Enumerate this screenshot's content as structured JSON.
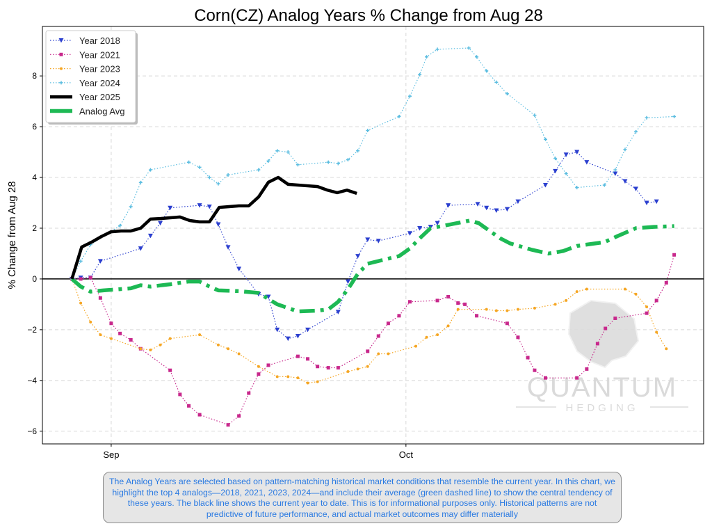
{
  "chart_data": {
    "type": "line",
    "title": "Corn(CZ) Analog Years % Change from Aug 28",
    "xlabel": "",
    "ylabel": "% Change from Aug 28",
    "x_unit": "days since Aug 28",
    "xlim": [
      -3,
      64.3
    ],
    "ylim": [
      -6.5,
      9.95
    ],
    "x_ticks": [
      {
        "value": 4,
        "label": "Sep"
      },
      {
        "value": 34,
        "label": "Oct"
      }
    ],
    "y_ticks": [
      -6,
      -4,
      -2,
      0,
      2,
      4,
      6,
      8
    ],
    "grid": true,
    "legend_position": "top-left",
    "series": [
      {
        "name": "Year 2018",
        "color": "#2b3fcf",
        "style": "dotted",
        "marker": "triangle-down",
        "x": [
          0,
          0.9,
          1.9,
          2.9,
          7,
          8,
          9,
          10,
          13,
          14,
          14.9,
          15.9,
          17,
          19,
          20,
          20.9,
          22,
          23,
          24,
          27.1,
          28.1,
          29.1,
          30.1,
          31.2,
          34.4,
          35.4,
          36.5,
          37.2,
          38.3,
          41.3,
          42.2,
          43.2,
          44.3,
          45.4,
          48.2,
          49.2,
          50.3,
          51.4,
          52.4,
          55.3,
          56.3,
          57.4,
          58.5,
          59.5
        ],
        "y": [
          0,
          0.05,
          0.05,
          0.7,
          1.2,
          1.7,
          2.2,
          2.8,
          2.9,
          2.85,
          2.15,
          1.25,
          0.4,
          -0.6,
          -0.7,
          -2.0,
          -2.35,
          -2.25,
          -2.0,
          -1.3,
          -0.1,
          0.9,
          1.55,
          1.5,
          1.8,
          2.0,
          2.05,
          2.2,
          2.9,
          2.95,
          2.8,
          2.7,
          2.75,
          3.05,
          3.7,
          4.25,
          4.9,
          5.0,
          4.6,
          4.15,
          3.85,
          3.55,
          3.0,
          3.05
        ]
      },
      {
        "name": "Year 2021",
        "color": "#c8288c",
        "style": "dotted",
        "marker": "square",
        "x": [
          0,
          0.9,
          1.9,
          2.9,
          4,
          4.9,
          6,
          7,
          10,
          11,
          11.9,
          13,
          15.9,
          17,
          18,
          19,
          20,
          23,
          24,
          25,
          26.1,
          27.1,
          30.1,
          31.2,
          32.2,
          33.3,
          34.4,
          37.2,
          38.3,
          39.3,
          40,
          41.2,
          44.3,
          45.4,
          46.4,
          47.1,
          48.2,
          51.4,
          52.4,
          53.5,
          54.3,
          55.3,
          58.5,
          59.5,
          60.5,
          61.3
        ],
        "y": [
          0,
          0,
          0.05,
          -0.75,
          -1.75,
          -2.15,
          -2.4,
          -2.75,
          -3.6,
          -4.55,
          -5.0,
          -5.35,
          -5.75,
          -5.4,
          -4.5,
          -3.75,
          -3.4,
          -3.05,
          -3.15,
          -3.45,
          -3.5,
          -3.5,
          -2.85,
          -2.25,
          -1.75,
          -1.45,
          -0.9,
          -0.85,
          -0.7,
          -0.95,
          -1.0,
          -1.45,
          -1.75,
          -2.3,
          -3.1,
          -3.6,
          -3.9,
          -3.9,
          -3.55,
          -2.55,
          -1.95,
          -1.55,
          -1.35,
          -0.85,
          -0.15,
          0.95
        ]
      },
      {
        "name": "Year 2023",
        "color": "#f5a623",
        "style": "dotted",
        "marker": "star",
        "x": [
          0,
          0.9,
          1.9,
          2.9,
          4,
          7,
          8,
          9,
          10,
          13,
          14.9,
          15.9,
          17,
          19,
          20.9,
          22,
          23,
          24,
          25,
          28.1,
          29.1,
          30.1,
          31.2,
          32.2,
          35,
          36.1,
          37.2,
          38.3,
          39.3,
          42.2,
          43.2,
          44.3,
          45.4,
          47.1,
          49.2,
          50.3,
          51.4,
          52.4,
          56.3,
          57.4,
          58.5,
          59.5,
          60.5
        ],
        "y": [
          0,
          -0.95,
          -1.7,
          -2.2,
          -2.35,
          -2.75,
          -2.8,
          -2.6,
          -2.35,
          -2.2,
          -2.6,
          -2.75,
          -2.95,
          -3.45,
          -3.85,
          -3.85,
          -3.9,
          -4.1,
          -4.05,
          -3.65,
          -3.55,
          -3.45,
          -2.95,
          -2.95,
          -2.65,
          -2.3,
          -2.2,
          -1.85,
          -1.2,
          -1.2,
          -1.25,
          -1.25,
          -1.2,
          -1.15,
          -1.0,
          -0.85,
          -0.5,
          -0.4,
          -0.4,
          -0.6,
          -1.1,
          -2.1,
          -2.75
        ]
      },
      {
        "name": "Year 2024",
        "color": "#5bbde0",
        "style": "dotted",
        "marker": "plus",
        "x": [
          0,
          0.9,
          1.9,
          4.9,
          6,
          7,
          8,
          11.9,
          13,
          14,
          14.9,
          15.9,
          19,
          20,
          20.9,
          22,
          23,
          26.1,
          27.1,
          28.1,
          29.1,
          30.1,
          33.3,
          34.4,
          35.4,
          36.1,
          37.2,
          40.4,
          41.2,
          42.2,
          43.2,
          44.3,
          47.1,
          48.2,
          49.2,
          50.3,
          51.4,
          54.2,
          55.3,
          56.3,
          57.4,
          58.5,
          61.3
        ],
        "y": [
          0,
          0.7,
          1.35,
          2.1,
          2.85,
          3.8,
          4.3,
          4.6,
          4.4,
          4.0,
          3.75,
          4.1,
          4.3,
          4.65,
          5.05,
          5.0,
          4.5,
          4.6,
          4.55,
          4.7,
          5.05,
          5.85,
          6.4,
          7.2,
          8.05,
          8.75,
          9.05,
          9.1,
          8.75,
          8.2,
          7.75,
          7.3,
          6.45,
          5.5,
          4.75,
          4.15,
          3.6,
          3.7,
          4.3,
          5.1,
          5.8,
          6.35,
          6.4
        ]
      },
      {
        "name": "Year 2025",
        "color": "#000000",
        "style": "solid",
        "marker": "none",
        "x": [
          0,
          1,
          2,
          3,
          4,
          5,
          6,
          7,
          8,
          9,
          10,
          11,
          12,
          13,
          14,
          15,
          16,
          17,
          18,
          19,
          20,
          21,
          22,
          23,
          24,
          25,
          26,
          27,
          28,
          29
        ],
        "y": [
          0,
          1.26,
          1.45,
          1.67,
          1.86,
          1.89,
          1.89,
          2.0,
          2.36,
          2.38,
          2.41,
          2.44,
          2.3,
          2.25,
          2.25,
          2.82,
          2.85,
          2.88,
          2.88,
          3.23,
          3.81,
          4.0,
          3.73,
          3.7,
          3.67,
          3.64,
          3.5,
          3.4,
          3.5,
          3.37
        ]
      },
      {
        "name": "Analog Avg",
        "color": "#1db954",
        "style": "dashdot",
        "marker": "none",
        "x": [
          0,
          0.9,
          1.9,
          3.2,
          6,
          7,
          8,
          10.2,
          11.9,
          13,
          14,
          14.9,
          17,
          19,
          20.9,
          23,
          25,
          26.1,
          27.1,
          28.1,
          29.1,
          30.1,
          32.2,
          33.3,
          34.4,
          35.4,
          36.5,
          37.9,
          40.5,
          41.4,
          42.5,
          43.6,
          44.6,
          46.8,
          48.5,
          50,
          51.4,
          54.2,
          55.6,
          57.4,
          59.2,
          61.3
        ],
        "y": [
          0,
          -0.3,
          -0.5,
          -0.45,
          -0.37,
          -0.25,
          -0.3,
          -0.2,
          -0.1,
          -0.1,
          -0.3,
          -0.45,
          -0.48,
          -0.55,
          -1.0,
          -1.28,
          -1.25,
          -1.2,
          -0.9,
          -0.4,
          0.2,
          0.6,
          0.8,
          0.9,
          1.2,
          1.6,
          2.0,
          2.1,
          2.3,
          2.2,
          1.9,
          1.6,
          1.4,
          1.15,
          1.0,
          1.1,
          1.3,
          1.45,
          1.7,
          2.0,
          2.05,
          2.08
        ]
      }
    ],
    "annotations": {
      "caption": "The Analog Years are selected based on pattern-matching historical market conditions that resemble the current year. In this chart, we highlight the top 4 analogs—2018, 2021, 2023, 2024—and include their average (green dashed line) to show the central tendency of these years. The black line shows the current year to date. This is for informational purposes only. Historical patterns are not predictive of future performance, and actual market outcomes may differ materially",
      "watermark_top": "QUANTUM",
      "watermark_bottom": "HEDGING"
    }
  }
}
